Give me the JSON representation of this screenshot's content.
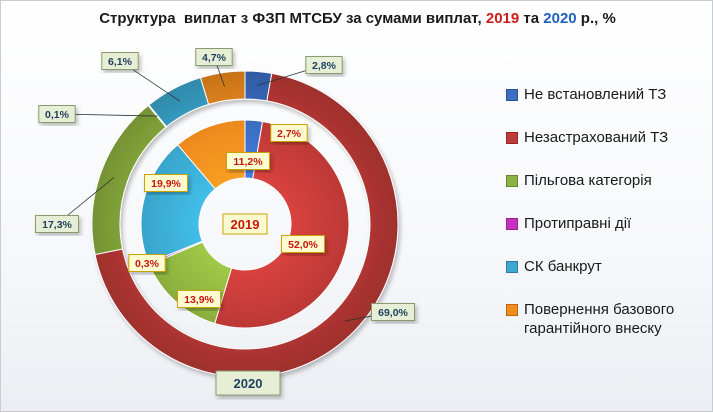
{
  "title": {
    "prefix": "Структура  виплат з ФЗП МТСБУ за сумами виплат, ",
    "year1": "2019",
    "mid": " та ",
    "year2": "2020",
    "suffix": " р., %"
  },
  "colors": {
    "Не встановлений ТЗ": "#3b6fc4",
    "Незастрахований ТЗ": "#c03a37",
    "Пільгова категорія": "#8db23f",
    "Протиправні дії": "#c62fc0",
    "СК банкрут": "#3aa8cf",
    "Повернення базового гарантійного внеску": "#f08c1e"
  },
  "chart_data": {
    "type": "donut",
    "categories": [
      "Не встановлений ТЗ",
      "Незастрахований ТЗ",
      "Пільгова категорія",
      "Протиправні дії",
      "СК банкрут",
      "Повернення базового гарантійного внеску"
    ],
    "series": [
      {
        "name": "2019",
        "values": [
          2.7,
          52.0,
          13.9,
          0.3,
          19.9,
          11.2
        ],
        "labels": [
          "2,7%",
          "52,0%",
          "13,9%",
          "0,3%",
          "19,9%",
          "11,2%"
        ]
      },
      {
        "name": "2020",
        "values": [
          2.8,
          69.0,
          17.3,
          0.1,
          6.1,
          4.7
        ],
        "labels": [
          "2,8%",
          "69,0%",
          "17,3%",
          "0,1%",
          "6,1%",
          "4,7%"
        ]
      }
    ],
    "center_label": "2019",
    "outer_label": "2020",
    "legend_position": "right"
  },
  "legend": [
    {
      "label": "Не встановлений ТЗ"
    },
    {
      "label": "Незастрахований ТЗ"
    },
    {
      "label": "Пільгова категорія"
    },
    {
      "label": "Протиправні дії"
    },
    {
      "label": "СК банкрут"
    },
    {
      "label": "Повернення базового гарантійного внеску"
    }
  ]
}
